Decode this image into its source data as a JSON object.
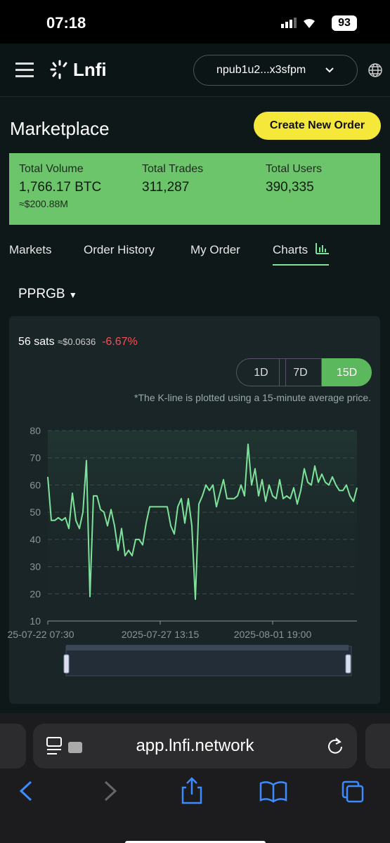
{
  "status_bar": {
    "time": "07:18",
    "battery": "93"
  },
  "header": {
    "logo": "Lnfi",
    "account": "npub1u2...x3sfpm"
  },
  "page": {
    "title": "Marketplace",
    "create_button": "Create New Order"
  },
  "stats": [
    {
      "label": "Total Volume",
      "value": "1,766.17 BTC",
      "sub": "≈$200.88M"
    },
    {
      "label": "Total Trades",
      "value": "311,287"
    },
    {
      "label": "Total Users",
      "value": "390,335"
    }
  ],
  "tabs": {
    "items": [
      "Markets",
      "Order History",
      "My Order",
      "Charts"
    ],
    "active": 3
  },
  "token": "PPRGB",
  "price": {
    "sats": "56 sats",
    "usd": "≈$0.0636",
    "change": "-6.67%"
  },
  "ranges": {
    "items": [
      "1D",
      "7D",
      "15D"
    ],
    "active": 2
  },
  "note": "*The K-line is plotted using a 15-minute average price.",
  "chart_data": {
    "type": "line",
    "color": "#7ee39a",
    "grid": true,
    "categories": [
      "25-07-22 07:30",
      null,
      null,
      null,
      null,
      null,
      null,
      null,
      null,
      null,
      null,
      null,
      null,
      null,
      null,
      null,
      null,
      null,
      null,
      null,
      null,
      null,
      null,
      null,
      null,
      null,
      null,
      null,
      null,
      null,
      null,
      null,
      "2025-07-27 13:15",
      null,
      null,
      null,
      null,
      null,
      null,
      null,
      null,
      null,
      null,
      null,
      null,
      null,
      null,
      null,
      null,
      null,
      null,
      null,
      null,
      null,
      null,
      null,
      null,
      null,
      null,
      null,
      null,
      null,
      null,
      null,
      "2025-08-01 19:00",
      null,
      null,
      null,
      null,
      null,
      null,
      null,
      null,
      null,
      null,
      null,
      null,
      null,
      null,
      null,
      null,
      null,
      null,
      null,
      null,
      null,
      null,
      null,
      null
    ],
    "values": [
      63,
      47,
      47,
      48,
      47,
      48,
      44,
      57,
      47,
      44,
      50,
      69,
      19,
      56,
      56,
      51,
      50,
      45,
      51,
      45,
      36,
      44,
      34,
      36,
      34,
      40,
      40,
      38,
      46,
      52,
      52,
      52,
      52,
      52,
      52,
      45,
      42,
      52,
      55,
      46,
      55,
      45,
      18,
      53,
      56,
      60,
      58,
      60,
      52,
      57,
      62,
      55,
      55,
      55,
      56,
      60,
      56,
      75,
      60,
      66,
      56,
      62,
      54,
      60,
      56,
      55,
      62,
      55,
      56,
      55,
      59,
      53,
      58,
      66,
      61,
      60,
      67,
      61,
      64,
      61,
      60,
      63,
      60,
      58,
      58,
      60,
      56,
      54,
      59
    ],
    "ylim": [
      10,
      80
    ],
    "yticks": [
      10,
      20,
      30,
      40,
      50,
      60,
      70,
      80
    ]
  },
  "browser": {
    "url": "app.lnfi.network"
  }
}
